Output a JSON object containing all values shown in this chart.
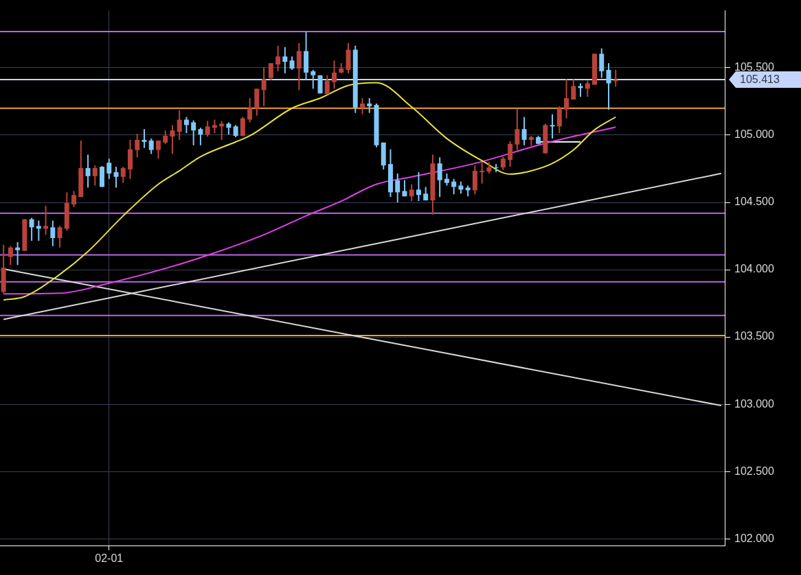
{
  "chart_data": {
    "type": "candlestick",
    "categories": [
      null,
      null,
      null,
      null,
      null,
      null,
      null,
      null,
      null,
      null,
      null,
      null,
      null,
      null,
      null,
      "02-01",
      null,
      null,
      null,
      null,
      null,
      null,
      null,
      null,
      null,
      null,
      null,
      null,
      null,
      null,
      null,
      null,
      null,
      null,
      null,
      null,
      null,
      null,
      null,
      null,
      null,
      null,
      null,
      null,
      null,
      null,
      null,
      null,
      null,
      null,
      null,
      null,
      null,
      null,
      null,
      null,
      null,
      null,
      null,
      null,
      null,
      null,
      null,
      null,
      null,
      null,
      null,
      null,
      null,
      null,
      null,
      null,
      null,
      null,
      null,
      null,
      null,
      null,
      null,
      null,
      null,
      null,
      null,
      null,
      null,
      null,
      null,
      null,
      null,
      null,
      null,
      null,
      null,
      null,
      null,
      null,
      null,
      null,
      null,
      null,
      null,
      null,
      null
    ],
    "ylim": [
      101.95,
      105.925
    ],
    "yticks": [
      {
        "value": 102,
        "label": "102.000"
      },
      {
        "value": 102.5,
        "label": "102.500"
      },
      {
        "value": 103,
        "label": "103.000"
      },
      {
        "value": 103.5,
        "label": "103.500"
      },
      {
        "value": 104,
        "label": "104.000"
      },
      {
        "value": 104.5,
        "label": "104.500"
      },
      {
        "value": 105,
        "label": "105.000"
      },
      {
        "value": 105.5,
        "label": "105.500"
      }
    ],
    "grid": true,
    "series": [
      {
        "ohlc": [
          [
            103.835,
            104.185,
            103.825,
            104.015
          ],
          [
            104.095,
            104.175,
            104.035,
            104.165
          ],
          [
            104.165,
            104.205,
            104.035,
            104.145
          ],
          [
            104.14,
            104.375,
            104.14,
            104.375
          ],
          [
            104.375,
            104.385,
            104.215,
            104.315
          ],
          [
            104.325,
            104.365,
            104.215,
            104.305
          ],
          [
            104.305,
            104.475,
            104.26,
            104.325
          ],
          [
            104.315,
            104.365,
            104.175,
            104.235
          ],
          [
            104.235,
            104.325,
            104.165,
            104.315
          ],
          [
            104.305,
            104.575,
            104.29,
            104.495
          ],
          [
            104.485,
            104.585,
            104.465,
            104.555
          ],
          [
            104.54,
            104.96,
            104.54,
            104.755
          ],
          [
            104.755,
            104.855,
            104.61,
            104.695
          ],
          [
            104.695,
            104.775,
            104.625,
            104.755
          ],
          [
            104.765,
            104.77,
            104.615,
            104.615
          ],
          [
            104.795,
            104.825,
            104.675,
            104.715
          ],
          [
            104.725,
            104.765,
            104.61,
            104.69
          ],
          [
            104.69,
            104.765,
            104.645,
            104.755
          ],
          [
            104.745,
            104.965,
            104.675,
            104.895
          ],
          [
            104.89,
            105.01,
            104.835,
            104.965
          ],
          [
            104.965,
            105.045,
            104.905,
            104.95
          ],
          [
            104.96,
            104.975,
            104.86,
            104.89
          ],
          [
            104.89,
            104.96,
            104.825,
            104.96
          ],
          [
            104.945,
            105.035,
            104.935,
            104.995
          ],
          [
            104.99,
            105.075,
            104.86,
            105.035
          ],
          [
            105.025,
            105.185,
            104.965,
            105.115
          ],
          [
            105.115,
            105.135,
            105.015,
            105.075
          ],
          [
            105.095,
            105.11,
            104.925,
            105.035
          ],
          [
            105.045,
            105.055,
            104.925,
            105.005
          ],
          [
            105.005,
            105.105,
            104.99,
            105.065
          ],
          [
            105.055,
            105.115,
            105.015,
            105.075
          ],
          [
            105.065,
            105.105,
            104.965,
            105.085
          ],
          [
            105.085,
            105.095,
            105.005,
            105.055
          ],
          [
            105.065,
            105.075,
            104.985,
            104.995
          ],
          [
            104.995,
            105.135,
            104.99,
            105.125
          ],
          [
            105.115,
            105.275,
            105.095,
            105.2
          ],
          [
            105.2,
            105.345,
            105.145,
            105.345
          ],
          [
            105.335,
            105.505,
            105.215,
            105.415
          ],
          [
            105.425,
            105.535,
            105.41,
            105.535
          ],
          [
            105.525,
            105.665,
            105.475,
            105.585
          ],
          [
            105.585,
            105.655,
            105.46,
            105.545
          ],
          [
            105.555,
            105.585,
            105.485,
            105.495
          ],
          [
            105.495,
            105.685,
            105.335,
            105.625
          ],
          [
            105.625,
            105.765,
            105.41,
            105.465
          ],
          [
            105.475,
            105.485,
            105.345,
            105.445
          ],
          [
            105.445,
            105.445,
            105.31,
            105.31
          ],
          [
            105.305,
            105.445,
            105.3,
            105.405
          ],
          [
            105.395,
            105.555,
            105.345,
            105.465
          ],
          [
            105.465,
            105.535,
            105.46,
            105.495
          ],
          [
            105.485,
            105.685,
            105.46,
            105.635
          ],
          [
            105.635,
            105.665,
            105.165,
            105.205
          ],
          [
            105.205,
            105.275,
            105.155,
            105.235
          ],
          [
            105.235,
            105.275,
            105.165,
            105.215
          ],
          [
            105.225,
            105.235,
            104.91,
            104.925
          ],
          [
            104.945,
            104.945,
            104.745,
            104.775
          ],
          [
            104.785,
            104.895,
            104.54,
            104.575
          ],
          [
            104.665,
            104.715,
            104.5,
            104.575
          ],
          [
            104.585,
            104.665,
            104.545,
            104.545
          ],
          [
            104.545,
            104.635,
            104.51,
            104.595
          ],
          [
            104.595,
            104.725,
            104.51,
            104.555
          ],
          [
            104.565,
            104.615,
            104.515,
            104.515
          ],
          [
            104.515,
            104.855,
            104.41,
            104.79
          ],
          [
            104.79,
            104.835,
            104.54,
            104.665
          ],
          [
            104.675,
            104.715,
            104.625,
            104.645
          ],
          [
            104.655,
            104.675,
            104.56,
            104.615
          ],
          [
            104.625,
            104.655,
            104.565,
            104.595
          ],
          [
            104.61,
            104.625,
            104.545,
            104.59
          ],
          [
            104.59,
            104.775,
            104.56,
            104.735
          ],
          [
            104.725,
            104.8,
            104.64,
            104.735
          ],
          [
            104.73,
            104.8,
            104.715,
            104.76
          ],
          [
            104.76,
            104.785,
            104.725,
            104.755
          ],
          [
            104.76,
            104.84,
            104.74,
            104.825
          ],
          [
            104.815,
            104.955,
            104.765,
            104.935
          ],
          [
            104.93,
            105.195,
            104.89,
            105.045
          ],
          [
            105.045,
            105.135,
            104.925,
            104.965
          ],
          [
            104.965,
            104.995,
            104.92,
            104.985
          ],
          [
            104.985,
            104.995,
            104.935,
            104.935
          ],
          [
            104.865,
            105.085,
            104.865,
            105.075
          ],
          [
            105.075,
            105.155,
            104.975,
            105.065
          ],
          [
            105.065,
            105.215,
            105.015,
            105.2
          ],
          [
            105.19,
            105.415,
            105.125,
            105.275
          ],
          [
            105.265,
            105.415,
            105.265,
            105.365
          ],
          [
            105.365,
            105.385,
            105.285,
            105.35
          ],
          [
            105.345,
            105.405,
            105.285,
            105.385
          ],
          [
            105.375,
            105.605,
            105.375,
            105.605
          ],
          [
            105.605,
            105.645,
            105.425,
            105.475
          ],
          [
            105.485,
            105.535,
            105.19,
            105.385
          ],
          [
            105.4,
            105.485,
            105.36,
            105.413
          ],
          null,
          null,
          null,
          null,
          null,
          null,
          null,
          null,
          null,
          null,
          null,
          null,
          null,
          null,
          null
        ],
        "colors": [
          "#b8433a",
          "#b8433a",
          "#80c8f8",
          "#b8433a",
          "#80c8f8",
          "#80c8f8",
          "#b8433a",
          "#80c8f8",
          "#b8433a",
          "#b8433a",
          "#b8433a",
          "#b8433a",
          "#80c8f8",
          "#b8433a",
          "#80c8f8",
          "#80c8f8",
          "#80c8f8",
          "#b8433a",
          "#b8433a",
          "#b8433a",
          "#80c8f8",
          "#80c8f8",
          "#b8433a",
          "#b8433a",
          "#b8433a",
          "#b8433a",
          "#80c8f8",
          "#80c8f8",
          "#80c8f8",
          "#b8433a",
          "#b8433a",
          "#b8433a",
          "#80c8f8",
          "#80c8f8",
          "#b8433a",
          "#b8433a",
          "#b8433a",
          "#b8433a",
          "#b8433a",
          "#b8433a",
          "#80c8f8",
          "#80c8f8",
          "#b8433a",
          "#80c8f8",
          "#80c8f8",
          "#80c8f8",
          "#b8433a",
          "#b8433a",
          "#b8433a",
          "#b8433a",
          "#80c8f8",
          "#b8433a",
          "#80c8f8",
          "#80c8f8",
          "#80c8f8",
          "#80c8f8",
          "#80c8f8",
          "#80c8f8",
          "#b8433a",
          "#80c8f8",
          "#80c8f8",
          "#b8433a",
          "#80c8f8",
          "#80c8f8",
          "#80c8f8",
          "#80c8f8",
          "#80c8f8",
          "#b8433a",
          "#b8433a",
          "#b8433a",
          "#80c8f8",
          "#b8433a",
          "#b8433a",
          "#b8433a",
          "#80c8f8",
          "#b8433a",
          "#80c8f8",
          "#b8433a",
          "#80c8f8",
          "#b8433a",
          "#b8433a",
          "#b8433a",
          "#80c8f8",
          "#b8433a",
          "#b8433a",
          "#80c8f8",
          "#80c8f8",
          "#b8433a",
          null,
          null,
          null,
          null,
          null,
          null,
          null,
          null,
          null,
          null,
          null,
          null,
          null,
          null,
          null
        ]
      },
      {
        "type": "line",
        "color": "#e6e040",
        "values": [
          103.775,
          null,
          null,
          103.8,
          null,
          null,
          null,
          null,
          103.965,
          null,
          null,
          null,
          104.135,
          null,
          null,
          null,
          null,
          104.4,
          null,
          null,
          null,
          null,
          104.635,
          null,
          null,
          104.735,
          null,
          null,
          104.84,
          null,
          null,
          null,
          null,
          104.95,
          null,
          104.995,
          null,
          null,
          null,
          null,
          null,
          105.2,
          null,
          null,
          null,
          105.275,
          null,
          null,
          null,
          105.37,
          null,
          null,
          null,
          105.39,
          null,
          null,
          null,
          null,
          105.21,
          null,
          null,
          null,
          null,
          104.975,
          null,
          null,
          null,
          null,
          104.81,
          null,
          null,
          null,
          104.71,
          null,
          null,
          104.735,
          null,
          null,
          104.79,
          null,
          null,
          104.89,
          null,
          null,
          105.04,
          null,
          null,
          105.135,
          null,
          null,
          null,
          null,
          null,
          null,
          null,
          null,
          null,
          null,
          null,
          null,
          null,
          null,
          null
        ]
      },
      {
        "type": "line",
        "color": "#e040e8",
        "values": [
          103.82,
          null,
          null,
          null,
          null,
          null,
          null,
          null,
          103.825,
          null,
          null,
          null,
          null,
          null,
          null,
          103.9,
          null,
          null,
          null,
          null,
          null,
          null,
          null,
          null,
          null,
          104.04,
          null,
          null,
          null,
          null,
          104.125,
          null,
          null,
          null,
          null,
          null,
          null,
          104.26,
          null,
          null,
          null,
          null,
          null,
          104.4,
          null,
          null,
          null,
          null,
          104.51,
          null,
          null,
          null,
          null,
          104.635,
          null,
          null,
          null,
          null,
          104.69,
          null,
          null,
          null,
          null,
          null,
          null,
          null,
          null,
          104.79,
          null,
          null,
          null,
          null,
          null,
          null,
          null,
          null,
          null,
          104.94,
          null,
          null,
          null,
          null,
          null,
          null,
          null,
          null,
          null,
          105.06,
          null,
          null,
          null,
          null,
          null,
          null,
          null,
          null,
          null,
          null,
          null,
          null,
          null,
          null,
          null
        ]
      },
      {
        "type": "line",
        "color": "#ffffff",
        "values": [
          null,
          null,
          null,
          null,
          null,
          null,
          null,
          null,
          null,
          null,
          null,
          null,
          null,
          null,
          null,
          null,
          null,
          null,
          null,
          null,
          null,
          null,
          null,
          null,
          null,
          null,
          null,
          null,
          null,
          null,
          null,
          null,
          null,
          null,
          null,
          null,
          null,
          null,
          null,
          null,
          null,
          null,
          null,
          null,
          null,
          null,
          null,
          null,
          null,
          null,
          null,
          null,
          null,
          null,
          null,
          null,
          null,
          null,
          null,
          null,
          null,
          null,
          null,
          null,
          null,
          null,
          null,
          null,
          null,
          null,
          null,
          null,
          null,
          null,
          null,
          null,
          104.95,
          null,
          null,
          null,
          null,
          null,
          104.95,
          null,
          null,
          null,
          null,
          null,
          null,
          null,
          null,
          null,
          null,
          null,
          null,
          null,
          null,
          null,
          null,
          null,
          null,
          null,
          null
        ]
      },
      {
        "type": "line",
        "color": "#d8d8d8",
        "values": [
          104.005,
          null,
          null,
          null,
          null,
          null,
          null,
          null,
          null,
          null,
          null,
          null,
          null,
          null,
          null,
          null,
          null,
          null,
          null,
          null,
          null,
          null,
          null,
          null,
          null,
          null,
          null,
          null,
          null,
          null,
          null,
          null,
          null,
          null,
          null,
          null,
          null,
          null,
          null,
          null,
          null,
          null,
          null,
          null,
          null,
          null,
          null,
          null,
          null,
          null,
          null,
          null,
          null,
          null,
          null,
          null,
          null,
          null,
          null,
          null,
          null,
          null,
          null,
          null,
          null,
          null,
          null,
          null,
          null,
          null,
          null,
          null,
          null,
          null,
          null,
          null,
          null,
          null,
          null,
          null,
          null,
          null,
          null,
          null,
          null,
          null,
          null,
          null,
          null,
          null,
          null,
          null,
          null,
          null,
          null,
          null,
          null,
          null,
          null,
          null,
          null,
          null,
          102.99
        ]
      },
      {
        "type": "line",
        "color": "#d8d8d8",
        "values": [
          103.63,
          null,
          null,
          null,
          null,
          null,
          null,
          null,
          null,
          null,
          null,
          null,
          null,
          null,
          null,
          null,
          null,
          null,
          null,
          null,
          null,
          null,
          null,
          null,
          null,
          null,
          null,
          null,
          null,
          null,
          null,
          null,
          null,
          null,
          null,
          null,
          null,
          null,
          null,
          null,
          null,
          null,
          null,
          null,
          null,
          null,
          null,
          null,
          null,
          null,
          null,
          null,
          null,
          null,
          null,
          null,
          null,
          null,
          null,
          null,
          null,
          null,
          null,
          null,
          null,
          null,
          null,
          null,
          null,
          null,
          null,
          null,
          null,
          null,
          null,
          null,
          null,
          null,
          null,
          null,
          null,
          null,
          null,
          null,
          null,
          null,
          null,
          null,
          null,
          null,
          null,
          null,
          null,
          null,
          null,
          null,
          null,
          null,
          null,
          null,
          null,
          null,
          104.715
        ]
      }
    ],
    "ref_lines": [
      {
        "axis": "y",
        "value": 105.77,
        "color": "#b868e0"
      },
      {
        "axis": "y",
        "value": 105.413,
        "label": "105.413",
        "color": "#c4d4fa"
      },
      {
        "axis": "y",
        "value": 105.2,
        "color": "#f0a030"
      },
      {
        "axis": "y",
        "value": 104.42,
        "color": "#b868e0"
      },
      {
        "axis": "y",
        "value": 104.11,
        "color": "#b868e0"
      },
      {
        "axis": "y",
        "value": 103.91,
        "color": "#b868e0"
      },
      {
        "axis": "y",
        "value": 103.66,
        "color": "#b868e0"
      },
      {
        "axis": "y",
        "value": 103.51,
        "color": "#f0a030"
      }
    ]
  }
}
